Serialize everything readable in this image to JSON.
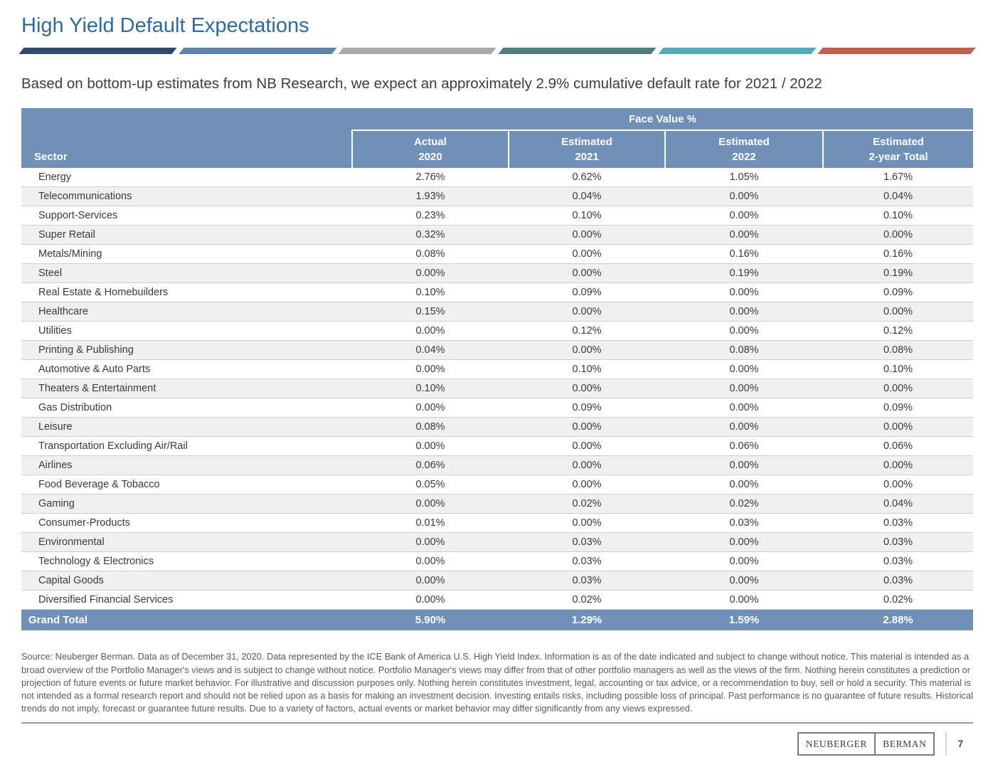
{
  "page": {
    "title": "High Yield Default Expectations",
    "subtitle": "Based on bottom-up estimates from NB Research, we expect an approximately 2.9% cumulative default rate for 2021 / 2022",
    "accent_bar_colors": [
      "#2e4d6e",
      "#5c82b0",
      "#aaaaaa",
      "#50807e",
      "#56adba",
      "#c3604c"
    ],
    "colors": {
      "title_blue": "#2d6ba3",
      "table_header_blue": "#7090b8",
      "striped_row_gray": "#f0f0f0"
    },
    "disclaimer": "Source: Neuberger Berman. Data as of December 31, 2020. Data represented by the ICE Bank of America U.S. High Yield Index. Information is as of the date indicated and subject to change without notice. This material is intended as a broad overview of the Portfolio Manager's views and is subject to change without notice. Portfolio Manager's views may differ from that of other portfolio managers as well as the views of the firm. Nothing herein constitutes a prediction or projection of future events or future market behavior. For illustrative and discussion purposes only. Nothing herein constitutes investment, legal, accounting or tax advice, or a recommendation to buy, sell or hold a security. This material is not intended as a formal research report and should not be relied upon as a basis for making an investment decision. Investing entails risks, including possible loss of principal. Past performance is no guarantee of future results. Historical trends do not imply, forecast or guarantee future results. Due to a variety of factors, actual events or market behavior may differ significantly from any views expressed.",
    "footer": {
      "logo_left": "NEUBERGER",
      "logo_right": "BERMAN",
      "page_number": "7"
    }
  },
  "table": {
    "group_header": "Face Value %",
    "sector_header": "Sector",
    "columns": [
      {
        "line1": "Actual",
        "line2": "2020"
      },
      {
        "line1": "Estimated",
        "line2": "2021"
      },
      {
        "line1": "Estimated",
        "line2": "2022"
      },
      {
        "line1": "Estimated",
        "line2": "2-year Total"
      }
    ],
    "rows": [
      {
        "sector": "Energy",
        "values": [
          "2.76%",
          "0.62%",
          "1.05%",
          "1.67%"
        ]
      },
      {
        "sector": "Telecommunications",
        "values": [
          "1.93%",
          "0.04%",
          "0.00%",
          "0.04%"
        ]
      },
      {
        "sector": "Support-Services",
        "values": [
          "0.23%",
          "0.10%",
          "0.00%",
          "0.10%"
        ]
      },
      {
        "sector": "Super Retail",
        "values": [
          "0.32%",
          "0.00%",
          "0.00%",
          "0.00%"
        ]
      },
      {
        "sector": "Metals/Mining",
        "values": [
          "0.08%",
          "0.00%",
          "0.16%",
          "0.16%"
        ]
      },
      {
        "sector": "Steel",
        "values": [
          "0.00%",
          "0.00%",
          "0.19%",
          "0.19%"
        ]
      },
      {
        "sector": "Real Estate & Homebuilders",
        "values": [
          "0.10%",
          "0.09%",
          "0.00%",
          "0.09%"
        ]
      },
      {
        "sector": "Healthcare",
        "values": [
          "0.15%",
          "0.00%",
          "0.00%",
          "0.00%"
        ]
      },
      {
        "sector": "Utilities",
        "values": [
          "0.00%",
          "0.12%",
          "0.00%",
          "0.12%"
        ]
      },
      {
        "sector": "Printing & Publishing",
        "values": [
          "0.04%",
          "0.00%",
          "0.08%",
          "0.08%"
        ]
      },
      {
        "sector": "Automotive & Auto Parts",
        "values": [
          "0.00%",
          "0.10%",
          "0.00%",
          "0.10%"
        ]
      },
      {
        "sector": "Theaters & Entertainment",
        "values": [
          "0.10%",
          "0.00%",
          "0.00%",
          "0.00%"
        ]
      },
      {
        "sector": "Gas Distribution",
        "values": [
          "0.00%",
          "0.09%",
          "0.00%",
          "0.09%"
        ]
      },
      {
        "sector": "Leisure",
        "values": [
          "0.08%",
          "0.00%",
          "0.00%",
          "0.00%"
        ]
      },
      {
        "sector": "Transportation Excluding Air/Rail",
        "values": [
          "0.00%",
          "0.00%",
          "0.06%",
          "0.06%"
        ]
      },
      {
        "sector": "Airlines",
        "values": [
          "0.06%",
          "0.00%",
          "0.00%",
          "0.00%"
        ]
      },
      {
        "sector": "Food Beverage & Tobacco",
        "values": [
          "0.05%",
          "0.00%",
          "0.00%",
          "0.00%"
        ]
      },
      {
        "sector": "Gaming",
        "values": [
          "0.00%",
          "0.02%",
          "0.02%",
          "0.04%"
        ]
      },
      {
        "sector": "Consumer-Products",
        "values": [
          "0.01%",
          "0.00%",
          "0.03%",
          "0.03%"
        ]
      },
      {
        "sector": "Environmental",
        "values": [
          "0.00%",
          "0.03%",
          "0.00%",
          "0.03%"
        ]
      },
      {
        "sector": "Technology & Electronics",
        "values": [
          "0.00%",
          "0.03%",
          "0.00%",
          "0.03%"
        ]
      },
      {
        "sector": "Capital Goods",
        "values": [
          "0.00%",
          "0.03%",
          "0.00%",
          "0.03%"
        ]
      },
      {
        "sector": "Diversified Financial Services",
        "values": [
          "0.00%",
          "0.02%",
          "0.00%",
          "0.02%"
        ]
      }
    ],
    "grand_total": {
      "label": "Grand Total",
      "values": [
        "5.90%",
        "1.29%",
        "1.59%",
        "2.88%"
      ]
    }
  }
}
